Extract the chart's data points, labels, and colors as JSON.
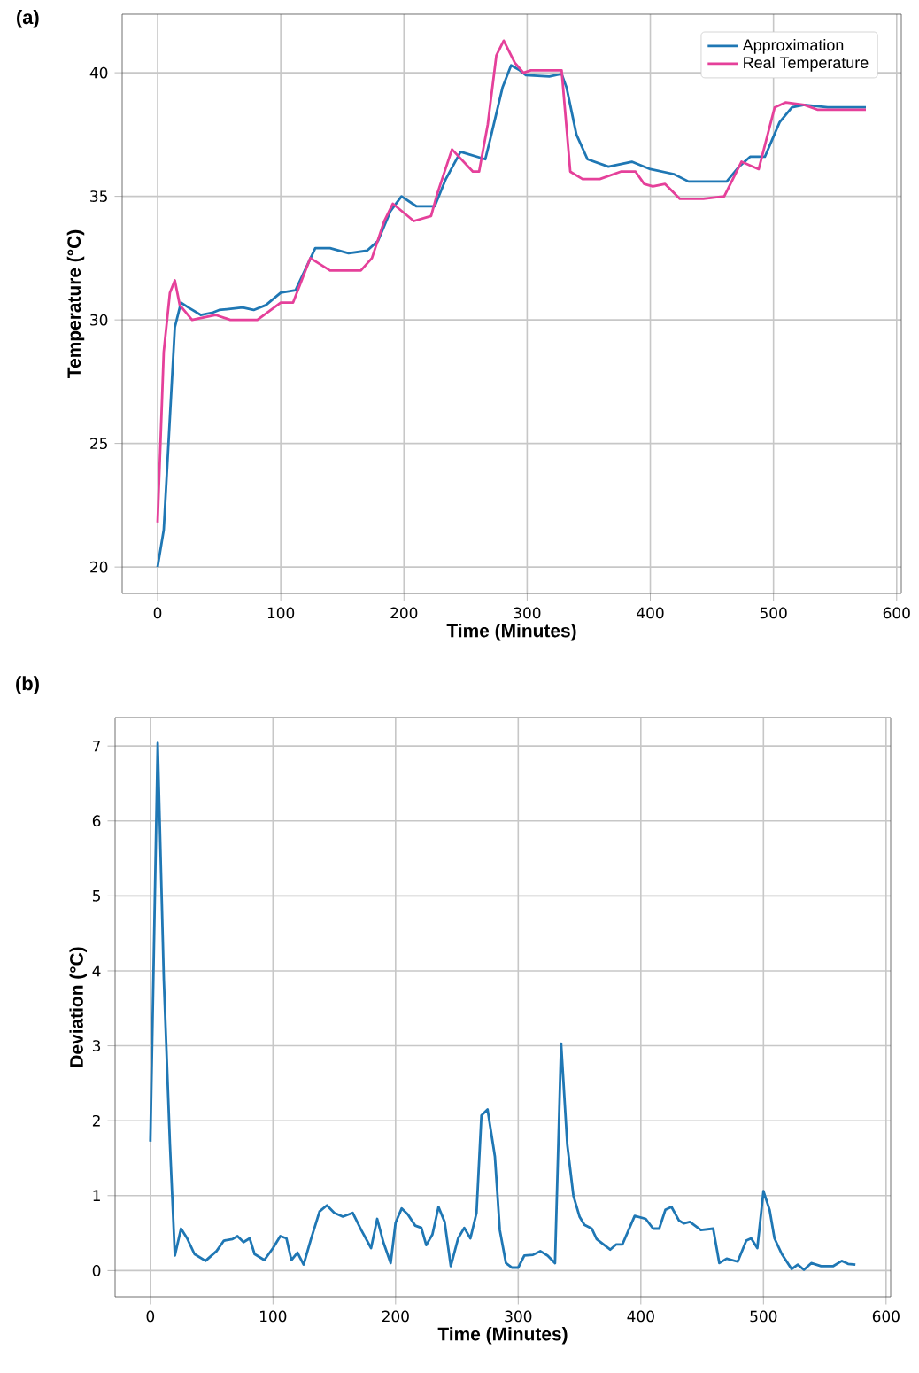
{
  "chart_data": [
    {
      "type": "line",
      "title": "(a)",
      "xlabel": "Time (Minutes)",
      "ylabel": "Temperature (°C)",
      "xlim": [
        -28.75,
        603.75
      ],
      "ylim": [
        18.93,
        42.37
      ],
      "xticks": [
        0,
        100,
        200,
        300,
        400,
        500,
        600
      ],
      "yticks": [
        20,
        25,
        30,
        35,
        40
      ],
      "grid": true,
      "legend": "top right",
      "marker": "none",
      "series": [
        {
          "name": "Approximation",
          "color": "#1f77b4",
          "x": [
            0,
            5,
            14,
            19,
            25,
            35,
            45,
            50,
            69,
            78,
            88,
            100,
            112,
            128,
            140,
            155,
            170,
            179,
            189,
            198,
            210,
            225,
            234,
            246,
            266,
            270,
            280,
            287,
            294,
            299,
            318,
            328,
            332,
            340,
            349,
            366,
            385,
            400,
            419,
            431,
            462,
            472,
            481,
            493,
            505,
            515,
            525,
            544,
            563,
            575
          ],
          "values": [
            20,
            21.5,
            29.7,
            30.7,
            30.5,
            30.2,
            30.3,
            30.4,
            30.5,
            30.4,
            30.6,
            31.1,
            31.2,
            32.9,
            32.9,
            32.7,
            32.8,
            33.2,
            34.4,
            35.0,
            34.6,
            34.6,
            35.7,
            36.8,
            36.5,
            37.3,
            39.4,
            40.3,
            40.1,
            39.9,
            39.85,
            39.95,
            39.4,
            37.5,
            36.5,
            36.2,
            36.4,
            36.1,
            35.9,
            35.6,
            35.6,
            36.2,
            36.6,
            36.6,
            38.0,
            38.6,
            38.7,
            38.6,
            38.6,
            38.6
          ]
        },
        {
          "name": "Real Temperature",
          "color": "#e5409a",
          "x": [
            0,
            5,
            10,
            14,
            18,
            28,
            47,
            59,
            81,
            100,
            110,
            124,
            140,
            165,
            174,
            184,
            191,
            208,
            222,
            227,
            239,
            256,
            261,
            268,
            275,
            281,
            290,
            297,
            303,
            328,
            335,
            345,
            359,
            376,
            388,
            395,
            402,
            412,
            424,
            443,
            460,
            474,
            488,
            501,
            510,
            525,
            536,
            575
          ],
          "values": [
            21.8,
            28.7,
            31.1,
            31.6,
            30.6,
            30.0,
            30.2,
            30.0,
            30.0,
            30.7,
            30.7,
            32.5,
            32.0,
            32.0,
            32.5,
            34.0,
            34.7,
            34.0,
            34.2,
            35.1,
            36.9,
            36.0,
            36.0,
            37.9,
            40.7,
            41.3,
            40.4,
            40.0,
            40.1,
            40.1,
            36.0,
            35.7,
            35.7,
            36.0,
            36.0,
            35.5,
            35.4,
            35.5,
            34.9,
            34.9,
            35.0,
            36.4,
            36.1,
            38.6,
            38.8,
            38.7,
            38.5,
            38.5
          ]
        }
      ]
    },
    {
      "type": "line",
      "title": "(b)",
      "xlabel": "Time (Minutes)",
      "ylabel": "Deviation (°C)",
      "xlim": [
        -28.75,
        603.75
      ],
      "ylim": [
        -0.35,
        7.38
      ],
      "xticks": [
        0,
        100,
        200,
        300,
        400,
        500,
        600
      ],
      "yticks": [
        0,
        1,
        2,
        3,
        4,
        5,
        6,
        7
      ],
      "grid": true,
      "marker": "none",
      "series": [
        {
          "color": "#1f77b4",
          "x": [
            0,
            6,
            11,
            16,
            20,
            25,
            30,
            36,
            45,
            54,
            60,
            67,
            71,
            76,
            81,
            85,
            93,
            100,
            106,
            111,
            115,
            120,
            125,
            131,
            138,
            144,
            150,
            157,
            165,
            172,
            180,
            185,
            190,
            196,
            200,
            205,
            210,
            216,
            221,
            225,
            230,
            235,
            240,
            245,
            251,
            256,
            261,
            266,
            270,
            275,
            281,
            285,
            290,
            295,
            300,
            305,
            312,
            318,
            324,
            330,
            335,
            340,
            345,
            350,
            354,
            360,
            364,
            375,
            380,
            385,
            395,
            404,
            410,
            415,
            420,
            425,
            431,
            435,
            440,
            449,
            459,
            464,
            470,
            479,
            486,
            490,
            495,
            500,
            505,
            509,
            515,
            523,
            528,
            533,
            539,
            547,
            557,
            564,
            569,
            575
          ],
          "values": [
            1.72,
            7.04,
            3.88,
            1.68,
            0.2,
            0.56,
            0.43,
            0.22,
            0.13,
            0.26,
            0.4,
            0.42,
            0.46,
            0.38,
            0.43,
            0.22,
            0.14,
            0.3,
            0.46,
            0.43,
            0.14,
            0.24,
            0.08,
            0.42,
            0.79,
            0.87,
            0.77,
            0.72,
            0.77,
            0.54,
            0.3,
            0.69,
            0.38,
            0.1,
            0.64,
            0.83,
            0.75,
            0.6,
            0.57,
            0.34,
            0.48,
            0.85,
            0.65,
            0.06,
            0.43,
            0.57,
            0.43,
            0.77,
            2.07,
            2.15,
            1.52,
            0.54,
            0.1,
            0.04,
            0.04,
            0.2,
            0.21,
            0.26,
            0.2,
            0.1,
            3.03,
            1.68,
            1.0,
            0.72,
            0.61,
            0.56,
            0.42,
            0.28,
            0.35,
            0.35,
            0.73,
            0.69,
            0.56,
            0.56,
            0.81,
            0.85,
            0.67,
            0.63,
            0.65,
            0.54,
            0.56,
            0.1,
            0.16,
            0.12,
            0.4,
            0.43,
            0.3,
            1.06,
            0.81,
            0.43,
            0.22,
            0.02,
            0.08,
            0.01,
            0.1,
            0.06,
            0.06,
            0.13,
            0.09,
            0.08
          ]
        }
      ]
    }
  ]
}
